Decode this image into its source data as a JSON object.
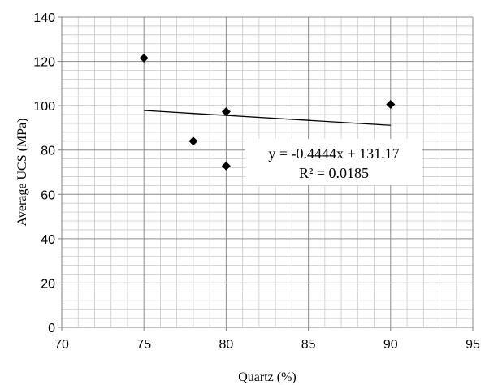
{
  "chart_data": {
    "type": "scatter",
    "xlabel": "Quartz (%)",
    "ylabel": "Average UCS (MPa)",
    "xlim": [
      70,
      95
    ],
    "ylim": [
      0,
      140
    ],
    "x_ticks": [
      "70",
      "75",
      "80",
      "85",
      "90",
      "95"
    ],
    "y_ticks": [
      "0",
      "20",
      "40",
      "60",
      "80",
      "100",
      "120",
      "140"
    ],
    "grid": true,
    "legend": "none",
    "series": [
      {
        "x": [
          75,
          78,
          80,
          80,
          90
        ],
        "y": [
          121.5,
          84,
          97.3,
          72.8,
          100.6
        ],
        "marker": "diamond",
        "color": "#000000"
      }
    ],
    "trendline": {
      "type": "linear",
      "slope": -0.4444,
      "intercept": 131.17,
      "x_range": [
        75,
        90
      ],
      "color": "#000000",
      "equation": "y = -0.4444x + 131.17",
      "r_squared": "R² = 0.0185"
    }
  }
}
